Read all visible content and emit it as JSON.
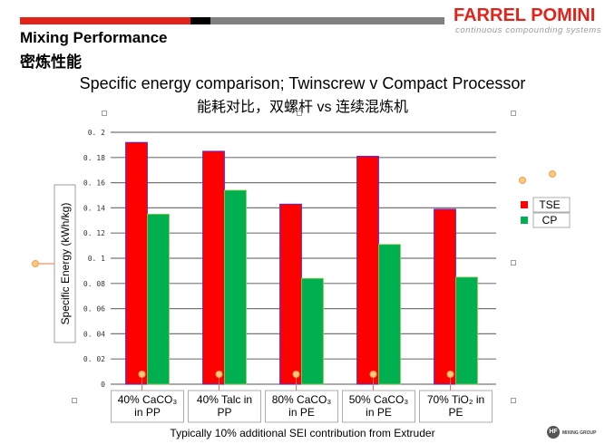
{
  "header": {
    "brand": "FARREL POMINI",
    "tagline": "continuous compounding systems",
    "title_en": "Mixing Performance",
    "title_cn": "密炼性能",
    "footer_logo": "MIXING GROUP",
    "footer_logo_mark": "HF"
  },
  "colors": {
    "tse": "#ff0000",
    "cp": "#00b050",
    "accent": "#e2231a"
  },
  "chart_data": {
    "type": "bar",
    "title": "Specific energy comparison; Twinscrew v Compact Processor",
    "subtitle": "能耗对比，双螺杆 vs 连续混炼机",
    "ylabel": "Specific Energy (kWh/kg)",
    "xlabel": "",
    "ylim": [
      0,
      0.2
    ],
    "yticks": [
      "0",
      "0.02",
      "0.04",
      "0.06",
      "0.08",
      "0.1",
      "0.12",
      "0.14",
      "0.16",
      "0.18",
      "0.2"
    ],
    "categories": [
      [
        "40% CaCO₃",
        "in PP"
      ],
      [
        "40% Talc in",
        "PP"
      ],
      [
        "80% CaCO₃",
        "in PE"
      ],
      [
        "50% CaCO₃",
        "in PE"
      ],
      [
        "70% TiO₂ in",
        "PE"
      ]
    ],
    "series": [
      {
        "name": "TSE",
        "values": [
          0.192,
          0.185,
          0.143,
          0.181,
          0.139
        ]
      },
      {
        "name": "CP",
        "values": [
          0.135,
          0.154,
          0.084,
          0.111,
          0.085
        ]
      }
    ],
    "legend_position": "right",
    "grid": true,
    "footnote": "Typically 10% additional SEI contribution from Extruder"
  }
}
